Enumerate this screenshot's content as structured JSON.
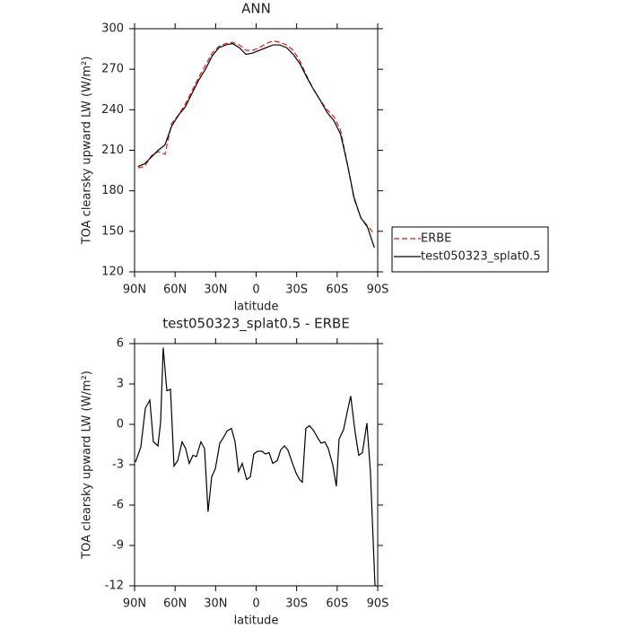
{
  "chart_data": [
    {
      "type": "line",
      "title": "ANN",
      "xlabel": "latitude",
      "ylabel": "TOA clearsky upward LW (W/m²)",
      "x": [
        87.5,
        82.5,
        77.5,
        72.5,
        67.5,
        62.5,
        57.5,
        52.5,
        47.5,
        42.5,
        37.5,
        32.5,
        27.5,
        22.5,
        17.5,
        12.5,
        7.5,
        2.5,
        -2.5,
        -7.5,
        -12.5,
        -17.5,
        -22.5,
        -27.5,
        -32.5,
        -37.5,
        -42.5,
        -47.5,
        -52.5,
        -57.5,
        -62.5,
        -67.5,
        -72.5,
        -77.5,
        -82.5,
        -87.5
      ],
      "series": [
        {
          "name": "ERBE",
          "color": "#dd1c1c",
          "dashed": true,
          "values": [
            197,
            198,
            206,
            209,
            207,
            230,
            236,
            244,
            254,
            264,
            273,
            282,
            287,
            289,
            290,
            288,
            284,
            284,
            286,
            289,
            291,
            290,
            288,
            284,
            276,
            265,
            255,
            247,
            240,
            235,
            225,
            200,
            174,
            160,
            154,
            148
          ]
        },
        {
          "name": "test050323_splat0.5",
          "color": "#000000",
          "dashed": false,
          "values": [
            198,
            200,
            205,
            210,
            214,
            228,
            236,
            242,
            252,
            262,
            270,
            280,
            286,
            288,
            289,
            286,
            281,
            282,
            284,
            286,
            288,
            288,
            286,
            281,
            274,
            264,
            255,
            247,
            238,
            232,
            222,
            200,
            175,
            160,
            153,
            138
          ]
        }
      ],
      "xlim": [
        90,
        -90
      ],
      "xticks": [
        {
          "value": 90,
          "label": "90N"
        },
        {
          "value": 60,
          "label": "60N"
        },
        {
          "value": 30,
          "label": "30N"
        },
        0,
        {
          "value": -30,
          "label": "30S"
        },
        {
          "value": -60,
          "label": "60S"
        },
        {
          "value": -90,
          "label": "90S"
        }
      ],
      "ylim": [
        120,
        300
      ],
      "yticks": [
        120,
        150,
        180,
        210,
        240,
        270,
        300
      ],
      "legend": "right"
    },
    {
      "type": "line",
      "title": "test050323_splat0.5 - ERBE",
      "xlabel": "latitude",
      "ylabel": "TOA clearsky upward LW (W/m²)",
      "x": [
        89.3,
        85.4,
        82.0,
        78.7,
        76.1,
        72.7,
        70.7,
        68.8,
        66.1,
        63.4,
        60.8,
        58.1,
        54.8,
        52.2,
        49.5,
        46.8,
        44.2,
        40.9,
        38.2,
        35.6,
        32.9,
        30.2,
        26.9,
        24.3,
        21.6,
        18.3,
        15.6,
        13.0,
        10.3,
        7.0,
        4.3,
        1.7,
        -1.0,
        -4.3,
        -6.9,
        -9.6,
        -12.3,
        -15.6,
        -18.2,
        -20.9,
        -23.5,
        -26.9,
        -29.5,
        -32.2,
        -34.2,
        -36.8,
        -39.5,
        -42.8,
        -45.5,
        -48.1,
        -50.8,
        -53.4,
        -56.7,
        -59.4,
        -61.4,
        -64.7,
        -67.4,
        -70.0,
        -73.3,
        -76.0,
        -78.7,
        -82.0,
        -84.6,
        -88.0
      ],
      "series": [
        {
          "color": "#000000",
          "dashed": false,
          "values": [
            -2.8,
            -1.7,
            1.2,
            1.8,
            -1.3,
            -1.6,
            0.2,
            5.7,
            2.5,
            2.6,
            -3.1,
            -2.7,
            -1.3,
            -1.8,
            -2.9,
            -2.3,
            -2.4,
            -1.3,
            -1.8,
            -6.5,
            -3.9,
            -3.3,
            -1.4,
            -1.0,
            -0.5,
            -0.3,
            -1.3,
            -3.5,
            -2.9,
            -4.1,
            -3.9,
            -2.2,
            -2.0,
            -2.0,
            -2.2,
            -2.1,
            -2.9,
            -2.7,
            -1.9,
            -1.6,
            -1.9,
            -2.9,
            -3.6,
            -4.1,
            -4.3,
            -0.3,
            -0.1,
            -0.5,
            -1.0,
            -1.4,
            -1.3,
            -1.8,
            -3.0,
            -4.6,
            -1.1,
            -0.4,
            0.9,
            2.1,
            -0.6,
            -2.3,
            -2.1,
            0.1,
            -3.5,
            -12.0
          ]
        }
      ],
      "xlim": [
        90,
        -90
      ],
      "xticks": [
        {
          "value": 90,
          "label": "90N"
        },
        {
          "value": 60,
          "label": "60N"
        },
        {
          "value": 30,
          "label": "30N"
        },
        0,
        {
          "value": -30,
          "label": "30S"
        },
        {
          "value": -60,
          "label": "60S"
        },
        {
          "value": -90,
          "label": "90S"
        }
      ],
      "ylim": [
        -12,
        6
      ],
      "yticks": [
        -12,
        -9,
        -6,
        -3,
        0,
        3,
        6
      ]
    }
  ]
}
